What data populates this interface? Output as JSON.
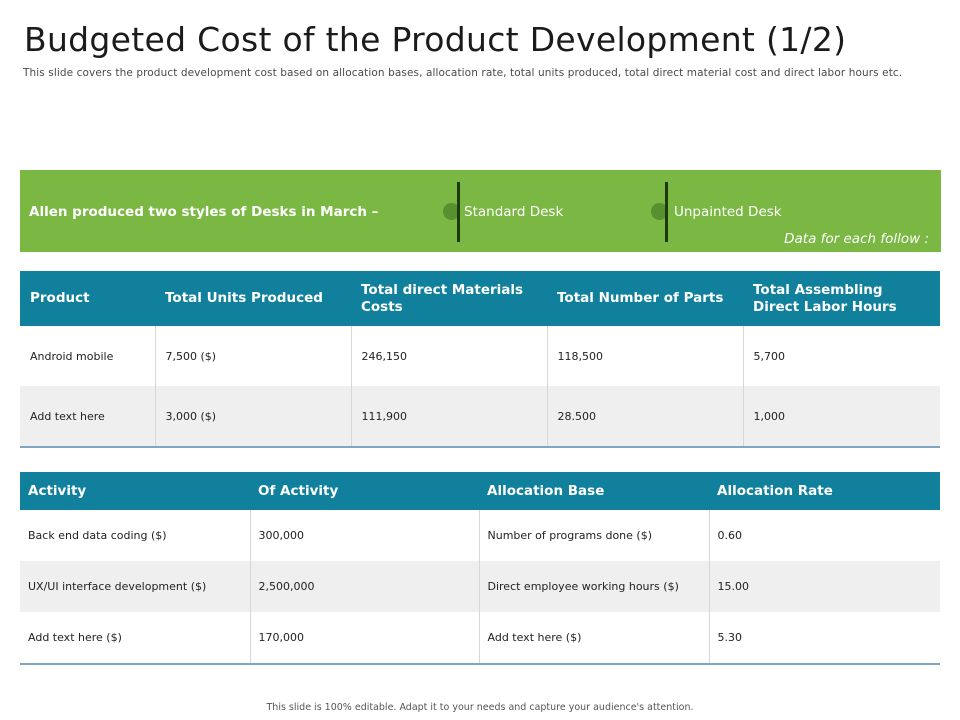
{
  "title": "Budgeted Cost of the Product Development (1/2)",
  "subtitle": "This slide covers the product development cost based on allocation bases, allocation rate, total units produced, total direct material cost and direct labor hours etc.",
  "banner": {
    "lead": "Allen produced two styles of Desks in March –",
    "option1": "Standard Desk",
    "option2": "Unpainted Desk",
    "follow": "Data for each follow :"
  },
  "table1": {
    "headers": [
      "Product",
      "Total Units Produced",
      "Total direct Materials Costs",
      "Total Number of Parts",
      "Total Assembling Direct Labor Hours"
    ],
    "rows": [
      [
        "Android mobile",
        "7,500 ($)",
        "246,150",
        "118,500",
        "5,700"
      ],
      [
        "Add text here",
        "3,000 ($)",
        "111,900",
        "28.500",
        "1,000"
      ]
    ]
  },
  "table2": {
    "headers": [
      "Activity",
      "Of Activity",
      "Allocation Base",
      "Allocation Rate"
    ],
    "rows": [
      [
        "Back end data coding ($)",
        "300,000",
        "Number of programs done ($)",
        "0.60"
      ],
      [
        "UX/UI interface development ($)",
        "2,500,000",
        "Direct employee working hours ($)",
        "15.00"
      ],
      [
        "Add text here ($)",
        "170,000",
        "Add text here ($)",
        "5.30"
      ]
    ]
  },
  "footer": "This slide is 100% editable. Adapt it to your needs and capture your audience's attention.",
  "colors": {
    "banner": "#7ab843",
    "header": "#11809c",
    "alt_row": "#efefef"
  }
}
